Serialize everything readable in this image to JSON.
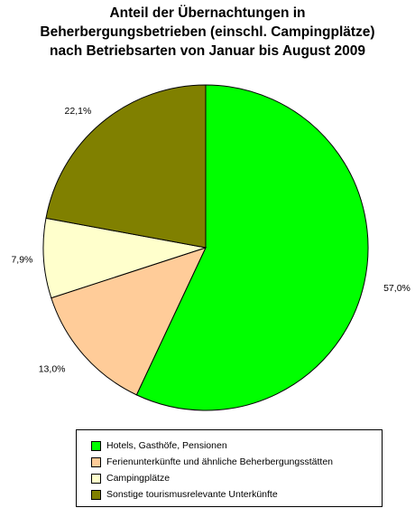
{
  "title_lines": [
    "Anteil der Übernachtungen in",
    "Beherbergungsbetrieben (einschl. Campingplätze)",
    "nach Betriebsarten von Januar bis August 2009"
  ],
  "chart_data": {
    "type": "pie",
    "title": "Anteil der Übernachtungen in Beherbergungsbetrieben (einschl. Campingplätze) nach Betriebsarten von Januar bis August 2009",
    "unit": "%",
    "legend_position": "bottom",
    "slices": [
      {
        "name": "Hotels, Gasthöfe, Pensionen",
        "value": 57.0,
        "label": "57,0%",
        "color": "#00ff00"
      },
      {
        "name": "Ferienunterkünfte und ähnliche Beherbergungsstätten",
        "value": 13.0,
        "label": "13,0%",
        "color": "#ffcc99"
      },
      {
        "name": "Campingplätze",
        "value": 7.9,
        "label": "7,9%",
        "color": "#ffffcc"
      },
      {
        "name": "Sonstige tourismusrelevante Unterkünfte",
        "value": 22.1,
        "label": "22,1%",
        "color": "#808000"
      }
    ]
  }
}
